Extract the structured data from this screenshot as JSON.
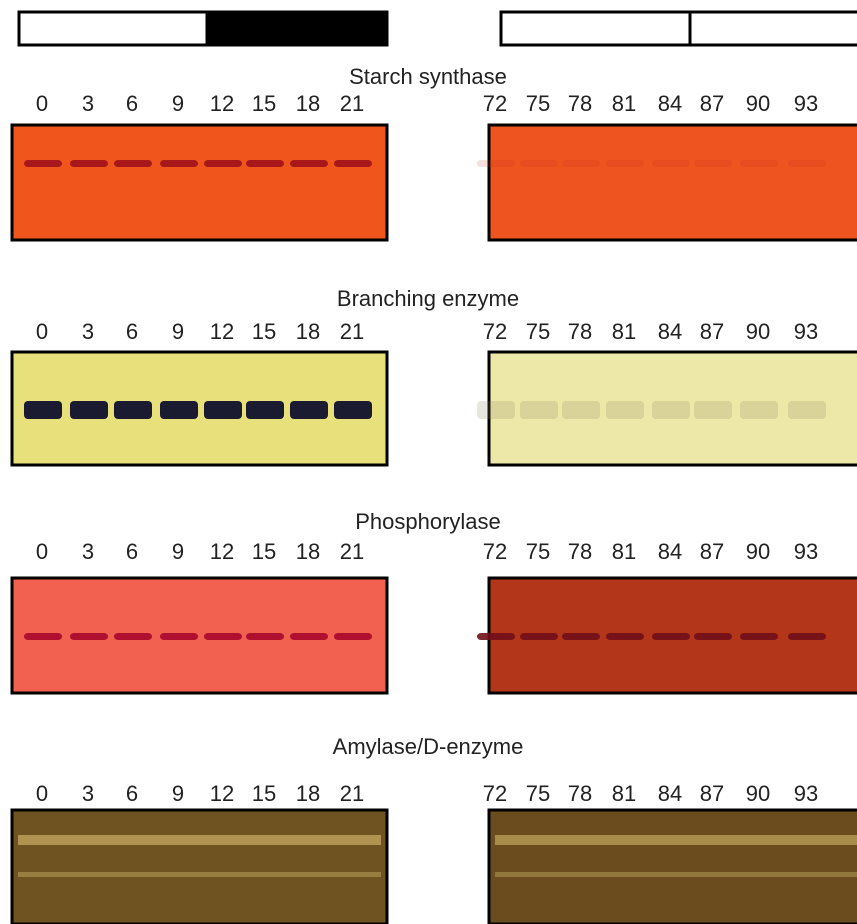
{
  "panels": [
    {
      "title": "Starch synthase",
      "left_lanes": [
        "0",
        "3",
        "6",
        "9",
        "12",
        "15",
        "18",
        "21"
      ],
      "right_lanes": [
        "72",
        "75",
        "78",
        "81",
        "84",
        "87",
        "90",
        "93"
      ]
    },
    {
      "title": "Branching enzyme",
      "left_lanes": [
        "0",
        "3",
        "6",
        "9",
        "12",
        "15",
        "18",
        "21"
      ],
      "right_lanes": [
        "72",
        "75",
        "78",
        "81",
        "84",
        "87",
        "90",
        "93"
      ]
    },
    {
      "title": "Phosphorylase",
      "left_lanes": [
        "0",
        "3",
        "6",
        "9",
        "12",
        "15",
        "18",
        "21"
      ],
      "right_lanes": [
        "72",
        "75",
        "78",
        "81",
        "84",
        "87",
        "90",
        "93"
      ]
    },
    {
      "title": "Amylase/D-enzyme",
      "left_lanes": [
        "0",
        "3",
        "6",
        "9",
        "12",
        "15",
        "18",
        "21"
      ],
      "right_lanes": [
        "72",
        "75",
        "78",
        "81",
        "84",
        "87",
        "90",
        "93"
      ]
    }
  ]
}
